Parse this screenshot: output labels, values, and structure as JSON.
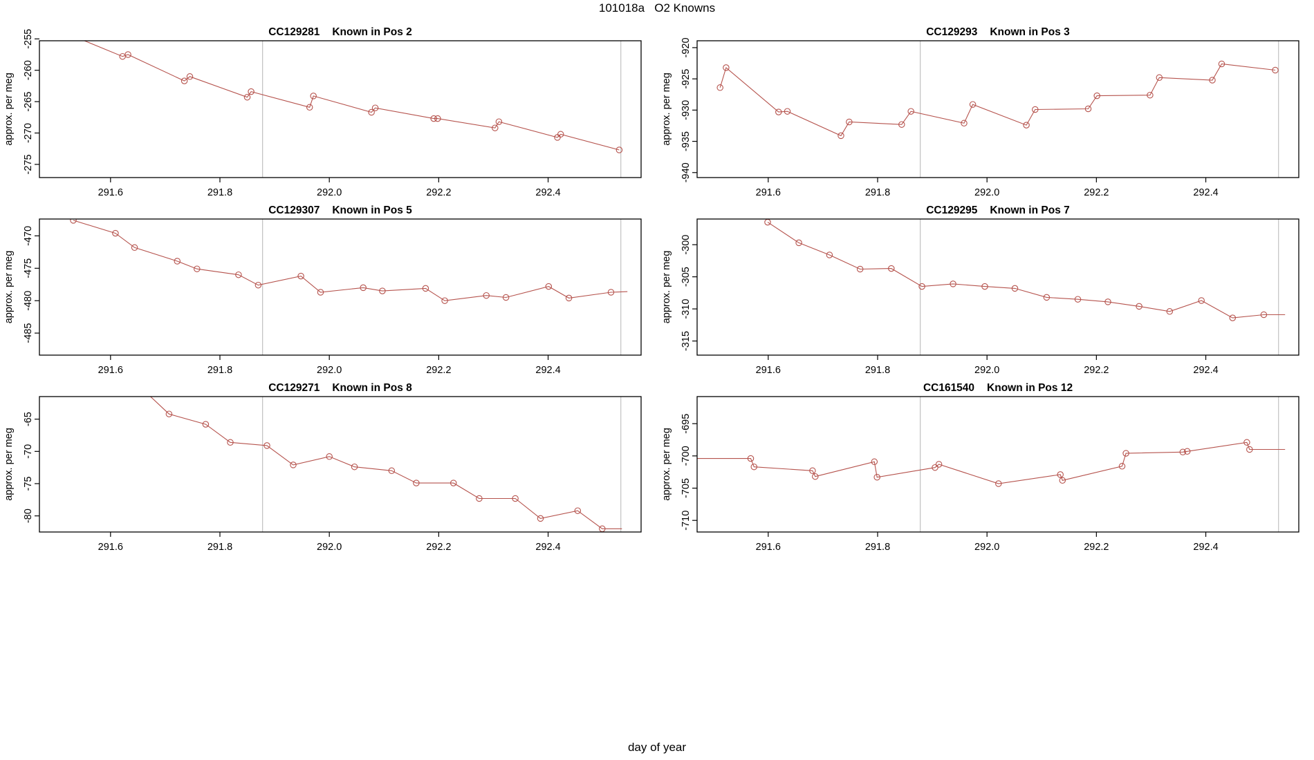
{
  "page_title": "101018a   O2 Knowns",
  "xlabel": "day of year",
  "colors": {
    "line": "#B5524C",
    "vline": "#BBBBBB",
    "box": "#000000",
    "text": "#000000"
  },
  "chart_data": [
    {
      "type": "line",
      "station_id": "CC129281",
      "pos_label": "Known in Pos 2",
      "ylabel": "approx. per meg",
      "xlabel": "day of year",
      "xlim": [
        291.47,
        292.57
      ],
      "ylim": [
        -277.1,
        -255.3
      ],
      "x_ticks": [
        291.6,
        291.8,
        292.0,
        292.2,
        292.4
      ],
      "y_ticks": [
        -255,
        -260,
        -265,
        -270,
        -275
      ],
      "vlines": [
        291.878,
        292.533
      ],
      "points": [
        [
          291.505,
          -253.6
        ],
        [
          291.622,
          -257.8
        ],
        [
          291.632,
          -257.5
        ],
        [
          291.735,
          -261.7
        ],
        [
          291.745,
          -261.0
        ],
        [
          291.85,
          -264.3
        ],
        [
          291.857,
          -263.4
        ],
        [
          291.964,
          -265.9
        ],
        [
          291.971,
          -264.1
        ],
        [
          292.077,
          -266.7
        ],
        [
          292.084,
          -266.0
        ],
        [
          292.191,
          -267.7
        ],
        [
          292.198,
          -267.7
        ],
        [
          292.303,
          -269.2
        ],
        [
          292.31,
          -268.2
        ],
        [
          292.417,
          -270.7
        ],
        [
          292.423,
          -270.2
        ],
        [
          292.53,
          -272.7
        ]
      ],
      "trail": []
    },
    {
      "type": "line",
      "station_id": "CC129293",
      "pos_label": "Known in Pos 3",
      "ylabel": "approx. per meg",
      "xlabel": "day of year",
      "xlim": [
        291.47,
        292.57
      ],
      "ylim": [
        -940.8,
        -918.9
      ],
      "x_ticks": [
        291.6,
        291.8,
        292.0,
        292.2,
        292.4
      ],
      "y_ticks": [
        -920,
        -925,
        -930,
        -935,
        -940
      ],
      "vlines": [
        291.878,
        292.533
      ],
      "points": [
        [
          291.512,
          -926.4
        ],
        [
          291.523,
          -923.2
        ],
        [
          291.619,
          -930.3
        ],
        [
          291.635,
          -930.2
        ],
        [
          291.733,
          -934.1
        ],
        [
          291.748,
          -931.9
        ],
        [
          291.844,
          -932.3
        ],
        [
          291.861,
          -930.2
        ],
        [
          291.958,
          -932.1
        ],
        [
          291.974,
          -929.1
        ],
        [
          292.072,
          -932.4
        ],
        [
          292.088,
          -929.9
        ],
        [
          292.185,
          -929.8
        ],
        [
          292.201,
          -927.7
        ],
        [
          292.298,
          -927.6
        ],
        [
          292.315,
          -924.8
        ],
        [
          292.412,
          -925.2
        ],
        [
          292.429,
          -922.6
        ],
        [
          292.527,
          -923.6
        ]
      ],
      "trail": []
    },
    {
      "type": "line",
      "station_id": "CC129307",
      "pos_label": "Known in Pos 5",
      "ylabel": "approx. per meg",
      "xlabel": "day of year",
      "xlim": [
        291.47,
        292.57
      ],
      "ylim": [
        -488.4,
        -467.4
      ],
      "x_ticks": [
        291.6,
        291.8,
        292.0,
        292.2,
        292.4
      ],
      "y_ticks": [
        -470,
        -475,
        -480,
        -485
      ],
      "vlines": [
        291.878,
        292.533
      ],
      "points": [
        [
          291.532,
          -467.6
        ],
        [
          291.609,
          -469.6
        ],
        [
          291.644,
          -471.8
        ],
        [
          291.722,
          -473.9
        ],
        [
          291.758,
          -475.1
        ],
        [
          291.834,
          -476.0
        ],
        [
          291.87,
          -477.6
        ],
        [
          291.948,
          -476.2
        ],
        [
          291.984,
          -478.7
        ],
        [
          292.062,
          -478.0
        ],
        [
          292.097,
          -478.5
        ],
        [
          292.176,
          -478.1
        ],
        [
          292.211,
          -480.0
        ],
        [
          292.287,
          -479.2
        ],
        [
          292.323,
          -479.5
        ],
        [
          292.401,
          -477.8
        ],
        [
          292.438,
          -479.6
        ],
        [
          292.515,
          -478.7
        ]
      ],
      "trail": [
        [
          292.545,
          -478.6
        ]
      ]
    },
    {
      "type": "line",
      "station_id": "CC129295",
      "pos_label": "Known in Pos 7",
      "ylabel": "approx. per meg",
      "xlabel": "day of year",
      "xlim": [
        291.47,
        292.57
      ],
      "ylim": [
        -317.2,
        -296.0
      ],
      "x_ticks": [
        291.6,
        291.8,
        292.0,
        292.2,
        292.4
      ],
      "y_ticks": [
        -300,
        -305,
        -310,
        -315
      ],
      "vlines": [
        291.878,
        292.533
      ],
      "points": [
        [
          291.599,
          -296.5
        ],
        [
          291.656,
          -299.7
        ],
        [
          291.712,
          -301.6
        ],
        [
          291.768,
          -303.8
        ],
        [
          291.825,
          -303.7
        ],
        [
          291.881,
          -306.5
        ],
        [
          291.938,
          -306.1
        ],
        [
          291.996,
          -306.5
        ],
        [
          292.051,
          -306.8
        ],
        [
          292.109,
          -308.2
        ],
        [
          292.166,
          -308.5
        ],
        [
          292.221,
          -308.9
        ],
        [
          292.278,
          -309.6
        ],
        [
          292.334,
          -310.4
        ],
        [
          292.392,
          -308.7
        ],
        [
          292.449,
          -311.4
        ],
        [
          292.506,
          -310.9
        ]
      ],
      "trail": [
        [
          292.545,
          -310.9
        ]
      ]
    },
    {
      "type": "line",
      "station_id": "CC129271",
      "pos_label": "Known in Pos 8",
      "ylabel": "approx. per meg",
      "xlabel": "day of year",
      "xlim": [
        291.47,
        292.57
      ],
      "ylim": [
        -82.5,
        -61.5
      ],
      "x_ticks": [
        291.6,
        291.8,
        292.0,
        292.2,
        292.4
      ],
      "y_ticks": [
        -65,
        -70,
        -75,
        -80
      ],
      "vlines": [
        291.878,
        292.533
      ],
      "points": [
        [
          291.648,
          -59.5
        ],
        [
          291.707,
          -64.2
        ],
        [
          291.774,
          -65.8
        ],
        [
          291.819,
          -68.6
        ],
        [
          291.886,
          -69.1
        ],
        [
          291.934,
          -72.1
        ],
        [
          292.0,
          -70.8
        ],
        [
          292.046,
          -72.4
        ],
        [
          292.114,
          -73.0
        ],
        [
          292.159,
          -74.9
        ],
        [
          292.227,
          -74.9
        ],
        [
          292.274,
          -77.3
        ],
        [
          292.34,
          -77.3
        ],
        [
          292.386,
          -80.4
        ],
        [
          292.454,
          -79.2
        ],
        [
          292.499,
          -82.0
        ]
      ],
      "trail": [
        [
          292.535,
          -82.0
        ]
      ]
    },
    {
      "type": "line",
      "station_id": "CC161540",
      "pos_label": "Known in Pos 12",
      "ylabel": "approx. per meg",
      "xlabel": "day of year",
      "xlim": [
        291.47,
        292.57
      ],
      "ylim": [
        -711.8,
        -690.8
      ],
      "x_ticks": [
        291.6,
        291.8,
        292.0,
        292.2,
        292.4
      ],
      "y_ticks": [
        -695,
        -700,
        -705,
        -710
      ],
      "vlines": [
        291.878,
        292.533
      ],
      "points": [
        [
          291.45,
          -700.4
        ],
        [
          291.568,
          -700.4
        ],
        [
          291.574,
          -701.7
        ],
        [
          291.681,
          -702.3
        ],
        [
          291.686,
          -703.2
        ],
        [
          291.794,
          -700.9
        ],
        [
          291.799,
          -703.3
        ],
        [
          291.905,
          -701.8
        ],
        [
          291.912,
          -701.3
        ],
        [
          292.021,
          -704.3
        ],
        [
          292.134,
          -702.9
        ],
        [
          292.138,
          -703.8
        ],
        [
          292.247,
          -701.6
        ],
        [
          292.254,
          -699.6
        ],
        [
          292.358,
          -699.4
        ],
        [
          292.366,
          -699.3
        ],
        [
          292.475,
          -697.9
        ],
        [
          292.48,
          -699.0
        ]
      ],
      "trail": [
        [
          292.545,
          -699.0
        ]
      ]
    }
  ]
}
